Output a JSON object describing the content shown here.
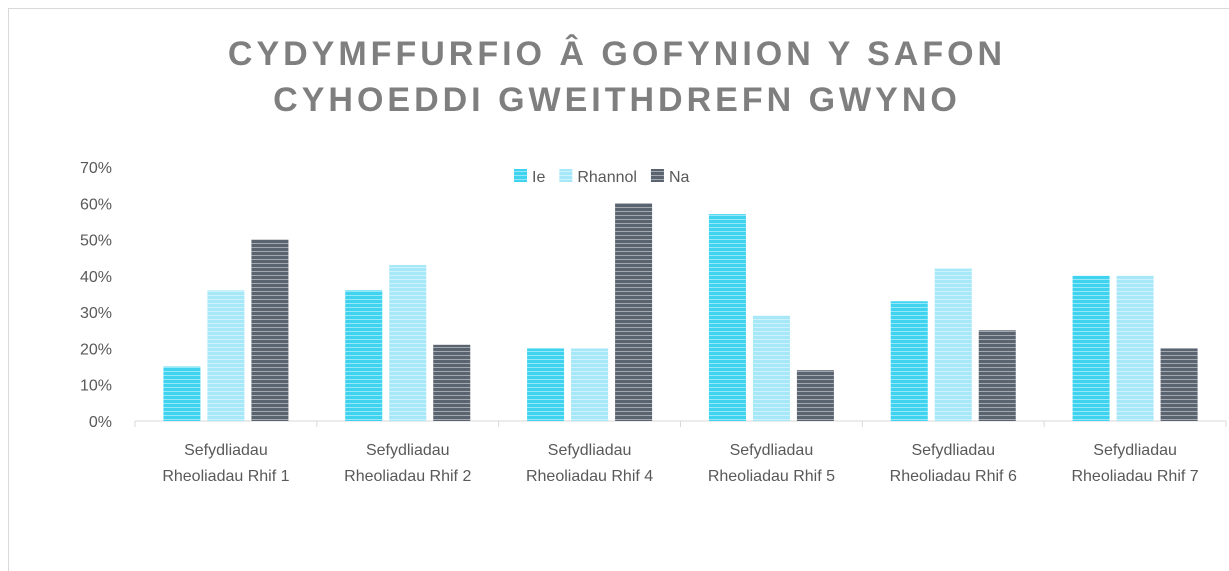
{
  "chart_data": {
    "type": "bar",
    "title": "CYDYMFFURFIO Â GOFYNION Y SAFON\nCYHOEDDI GWEITHDREFN GWYNO",
    "categories": [
      "Sefydliadau\nRheoliadau Rhif 1",
      "Sefydliadau\nRheoliadau Rhif 2",
      "Sefydliadau\nRheoliadau Rhif 4",
      "Sefydliadau\nRheoliadau Rhif 5",
      "Sefydliadau\nRheoliadau Rhif 6",
      "Sefydliadau\nRheoliadau Rhif 7"
    ],
    "series": [
      {
        "name": "Ie",
        "color": "#3fd3f0",
        "values": [
          15,
          36,
          20,
          57,
          33,
          40
        ]
      },
      {
        "name": "Rhannol",
        "color": "#a6e8f7",
        "values": [
          36,
          43,
          20,
          29,
          42,
          40
        ]
      },
      {
        "name": "Na",
        "color": "#5a6370",
        "values": [
          50,
          21,
          60,
          14,
          25,
          20
        ]
      }
    ],
    "ylim": [
      0,
      70
    ],
    "yticks": [
      {
        "value": 0,
        "label": "0%"
      },
      {
        "value": 10,
        "label": "10%"
      },
      {
        "value": 20,
        "label": "20%"
      },
      {
        "value": 30,
        "label": "30%"
      },
      {
        "value": 40,
        "label": "40%"
      },
      {
        "value": 50,
        "label": "50%"
      },
      {
        "value": 60,
        "label": "60%"
      },
      {
        "value": 70,
        "label": "70%"
      }
    ],
    "grid": false,
    "legend": "top"
  }
}
